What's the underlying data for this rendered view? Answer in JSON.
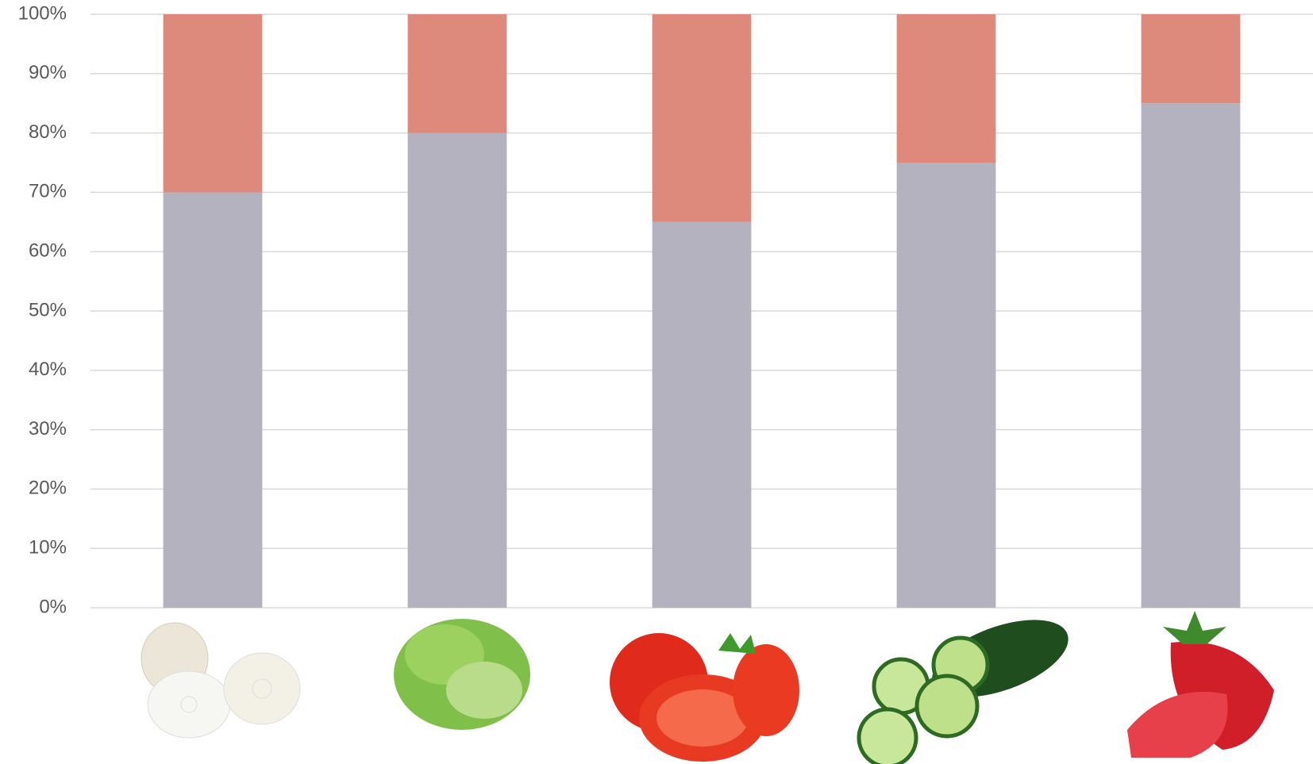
{
  "chart_data": {
    "type": "stacked_bar",
    "categories": [
      null,
      null,
      null,
      null,
      null
    ],
    "series": [
      {
        "color": "#b4b2bf",
        "values": [
          70,
          80,
          65,
          75,
          85
        ]
      },
      {
        "color": "#dd897b",
        "values": [
          30,
          20,
          35,
          25,
          15
        ]
      }
    ],
    "ylim": [
      0,
      100
    ],
    "yticks": [
      {
        "value": 0,
        "label": "0%"
      },
      {
        "value": 10,
        "label": "10%"
      },
      {
        "value": 20,
        "label": "20%"
      },
      {
        "value": 30,
        "label": "30%"
      },
      {
        "value": 40,
        "label": "40%"
      },
      {
        "value": 50,
        "label": "50%"
      },
      {
        "value": 60,
        "label": "60%"
      },
      {
        "value": 70,
        "label": "70%"
      },
      {
        "value": 80,
        "label": "80%"
      },
      {
        "value": 90,
        "label": "90%"
      },
      {
        "value": 100,
        "label": "100%"
      }
    ],
    "grid": true
  }
}
